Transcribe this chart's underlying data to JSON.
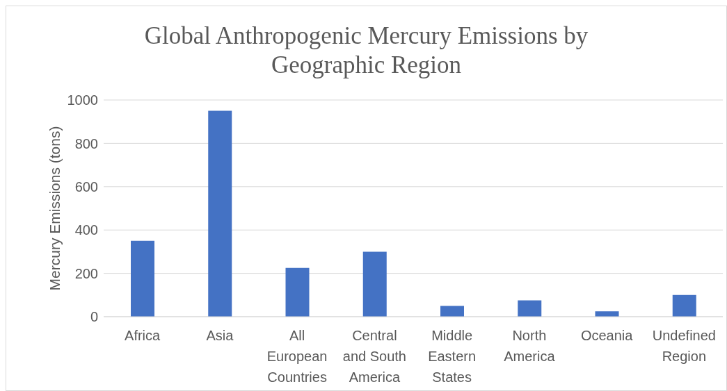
{
  "chart_data": {
    "type": "bar",
    "title": "Global Anthropogenic Mercury Emissions by Geographic Region",
    "ylabel": "Mercury Emissions (tons)",
    "categories": [
      "Africa",
      "Asia",
      "All European Countries",
      "Central and South America",
      "Middle Eastern States",
      "North America",
      "Oceania",
      "Undefined Region"
    ],
    "values": [
      350,
      950,
      225,
      300,
      50,
      75,
      25,
      100
    ],
    "color": "#4472c4",
    "ylim": [
      0,
      1000
    ],
    "yticks": [
      0,
      200,
      400,
      600,
      800,
      1000
    ],
    "grid": "y"
  }
}
